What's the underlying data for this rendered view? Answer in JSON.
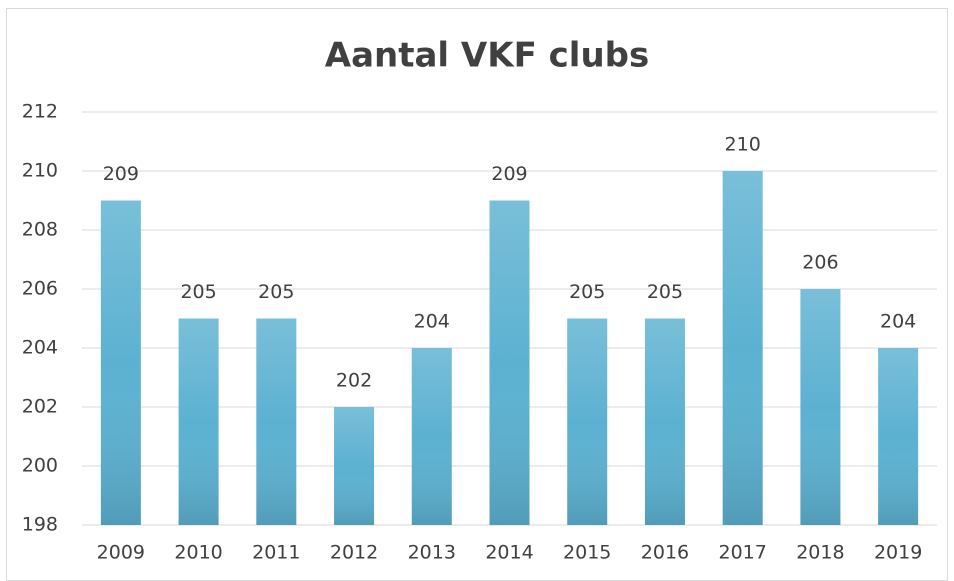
{
  "chart_data": {
    "type": "bar",
    "title": "Aantal VKF clubs",
    "categories": [
      "2009",
      "2010",
      "2011",
      "2012",
      "2013",
      "2014",
      "2015",
      "2016",
      "2017",
      "2018",
      "2019"
    ],
    "values": [
      209,
      205,
      205,
      202,
      204,
      209,
      205,
      205,
      210,
      206,
      204
    ],
    "color": "#5cb1d1",
    "ylim": [
      198,
      212
    ],
    "yticks": [
      198,
      200,
      202,
      204,
      206,
      208,
      210,
      212
    ],
    "grid": true
  }
}
